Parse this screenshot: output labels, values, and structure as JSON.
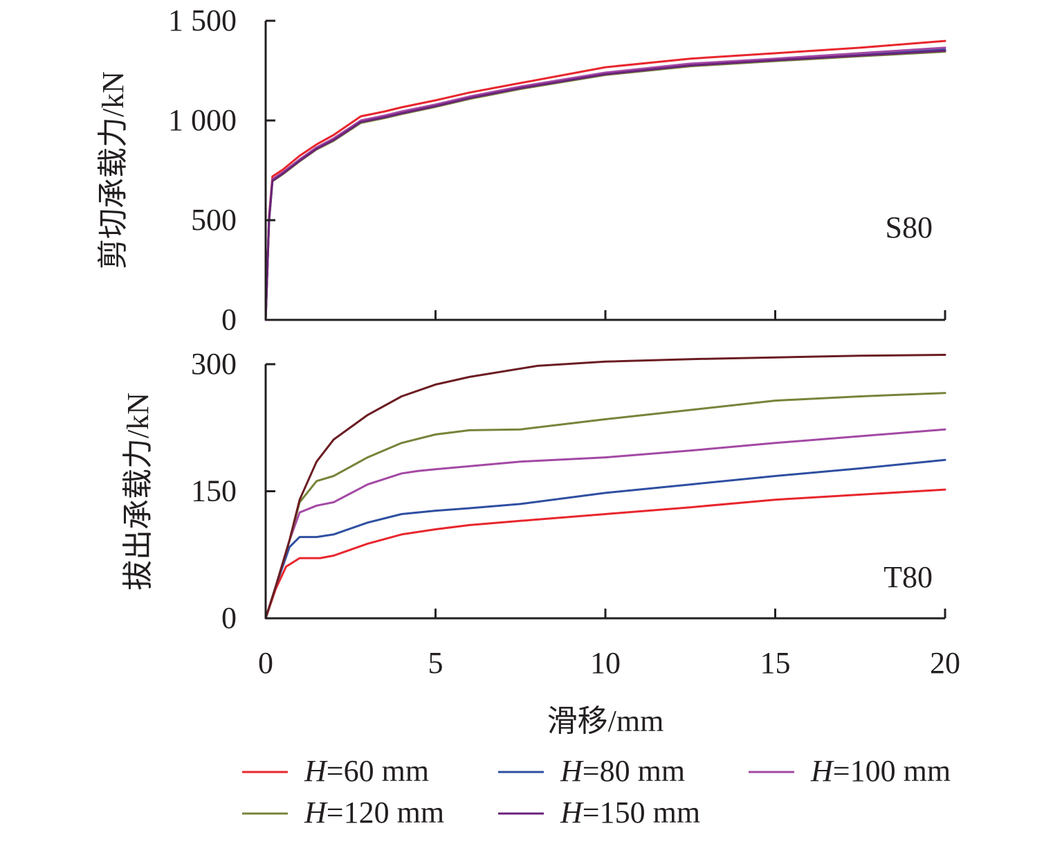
{
  "chart_data": [
    {
      "type": "line",
      "panel": "top",
      "panel_label": "S80",
      "title": "",
      "xlabel": "滑移/mm",
      "ylabel": "剪切承载力/kN",
      "xlim": [
        0,
        20
      ],
      "ylim": [
        0,
        1500
      ],
      "xticks": [
        0,
        5,
        10,
        15,
        20
      ],
      "xtick_labels": [
        "0",
        "5",
        "10",
        "15",
        "20"
      ],
      "yticks": [
        0,
        500,
        1000,
        1500
      ],
      "ytick_labels": [
        "0",
        "500",
        "1 000",
        "1 500"
      ],
      "grid": false,
      "series": [
        {
          "name": "H=60 mm",
          "color": "#e8262d",
          "x": [
            0,
            0.1,
            0.2,
            0.5,
            1,
            1.5,
            2,
            2.8,
            3.5,
            4,
            5,
            6,
            7.5,
            10,
            12.5,
            15,
            17.5,
            20
          ],
          "y": [
            0,
            520,
            719,
            753,
            823,
            880,
            927,
            1021,
            1045,
            1066,
            1101,
            1140,
            1188,
            1267,
            1310,
            1337,
            1365,
            1399
          ]
        },
        {
          "name": "H=80 mm",
          "color": "#2e4fa1",
          "x": [
            0,
            0.1,
            0.2,
            0.5,
            1,
            1.5,
            2,
            2.8,
            3.5,
            4,
            5,
            6,
            7.5,
            10,
            12.5,
            15,
            17.5,
            20
          ],
          "y": [
            0,
            500,
            700,
            735,
            800,
            860,
            905,
            995,
            1020,
            1040,
            1075,
            1115,
            1165,
            1235,
            1280,
            1305,
            1330,
            1355
          ]
        },
        {
          "name": "H=100 mm",
          "color": "#a349a4",
          "x": [
            0,
            0.1,
            0.2,
            0.5,
            1,
            1.5,
            2,
            2.8,
            3.5,
            4,
            5,
            6,
            7.5,
            10,
            12.5,
            15,
            17.5,
            20
          ],
          "y": [
            0,
            505,
            705,
            740,
            805,
            865,
            910,
            1000,
            1025,
            1045,
            1080,
            1120,
            1170,
            1240,
            1285,
            1310,
            1338,
            1365
          ]
        },
        {
          "name": "H=120 mm",
          "color": "#77843a",
          "x": [
            0,
            0.1,
            0.2,
            0.5,
            1,
            1.5,
            2,
            2.8,
            3.5,
            4,
            5,
            6,
            7.5,
            10,
            12.5,
            15,
            17.5,
            20
          ],
          "y": [
            0,
            495,
            695,
            730,
            795,
            855,
            898,
            988,
            1012,
            1032,
            1068,
            1108,
            1158,
            1228,
            1272,
            1298,
            1322,
            1345
          ]
        },
        {
          "name": "H=150 mm",
          "color": "#6a2279",
          "x": [
            0,
            0.1,
            0.2,
            0.5,
            1,
            1.5,
            2,
            2.8,
            3.5,
            4,
            5,
            6,
            7.5,
            10,
            12.5,
            15,
            17.5,
            20
          ],
          "y": [
            0,
            498,
            698,
            733,
            798,
            858,
            902,
            992,
            1016,
            1036,
            1072,
            1112,
            1162,
            1232,
            1276,
            1302,
            1326,
            1350
          ]
        }
      ]
    },
    {
      "type": "line",
      "panel": "bottom",
      "panel_label": "T80",
      "title": "",
      "xlabel": "滑移/mm",
      "ylabel": "拔出承载力/kN",
      "xlim": [
        0,
        20
      ],
      "ylim": [
        0,
        300
      ],
      "xticks": [
        0,
        5,
        10,
        15,
        20
      ],
      "xtick_labels": [
        "0",
        "5",
        "10",
        "15",
        "20"
      ],
      "yticks": [
        0,
        150,
        300
      ],
      "ytick_labels": [
        "0",
        "150",
        "300"
      ],
      "grid": false,
      "series": [
        {
          "name": "H=60 mm",
          "color": "#e8262d",
          "x": [
            0,
            0.3,
            0.6,
            1,
            1.6,
            2,
            3,
            4,
            5,
            6,
            7.5,
            10,
            12.5,
            15,
            17.5,
            20
          ],
          "y": [
            0,
            35,
            61,
            71,
            71,
            74,
            88,
            99,
            105,
            110,
            115,
            123,
            131,
            140,
            146,
            152
          ]
        },
        {
          "name": "H=80 mm",
          "color": "#2e4fa1",
          "x": [
            0,
            0.3,
            0.7,
            1,
            1.5,
            2,
            3,
            4,
            5,
            6,
            7.5,
            10,
            12.5,
            15,
            17.5,
            20
          ],
          "y": [
            0,
            38,
            84,
            96,
            96,
            99,
            113,
            123,
            127,
            130,
            135,
            148,
            158,
            168,
            177,
            187
          ]
        },
        {
          "name": "H=100 mm",
          "color": "#a349a4",
          "x": [
            0,
            0.3,
            0.7,
            1,
            1.5,
            2,
            3,
            4,
            4.5,
            5,
            7.5,
            10,
            12.5,
            15,
            17.5,
            20
          ],
          "y": [
            0,
            38,
            92,
            125,
            133,
            137,
            158,
            171,
            174,
            176,
            185,
            190,
            198,
            207,
            215,
            223
          ]
        },
        {
          "name": "H=120 mm",
          "color": "#77843a",
          "x": [
            0,
            0.3,
            0.7,
            1,
            1.5,
            2,
            3,
            4,
            5,
            6,
            7.5,
            10,
            12.5,
            15,
            17.5,
            20
          ],
          "y": [
            0,
            38,
            92,
            137,
            162,
            168,
            190,
            207,
            217,
            222,
            223,
            235,
            246,
            257,
            262,
            266
          ]
        },
        {
          "name": "H=150 mm",
          "color": "#6b1c22",
          "x": [
            0,
            0.3,
            0.7,
            1,
            1.5,
            2,
            3,
            4,
            5,
            6,
            8,
            10,
            12.5,
            15,
            17.5,
            20
          ],
          "y": [
            0,
            38,
            92,
            140,
            185,
            211,
            240,
            262,
            276,
            285,
            298,
            303,
            306,
            308,
            310,
            311
          ]
        }
      ]
    }
  ],
  "legend": {
    "placement": "bottom",
    "items": [
      {
        "var": "H",
        "rest": "=60 mm",
        "color": "#e8262d"
      },
      {
        "var": "H",
        "rest": "=80 mm",
        "color": "#2e4fa1"
      },
      {
        "var": "H",
        "rest": "=100 mm",
        "color": "#a349a4"
      },
      {
        "var": "H",
        "rest": "=120 mm",
        "color": "#77843a"
      },
      {
        "var": "H",
        "rest": "=150 mm",
        "color": "#6a2279"
      }
    ]
  },
  "colors": {
    "axis": "#231f20",
    "text": "#231f20"
  }
}
